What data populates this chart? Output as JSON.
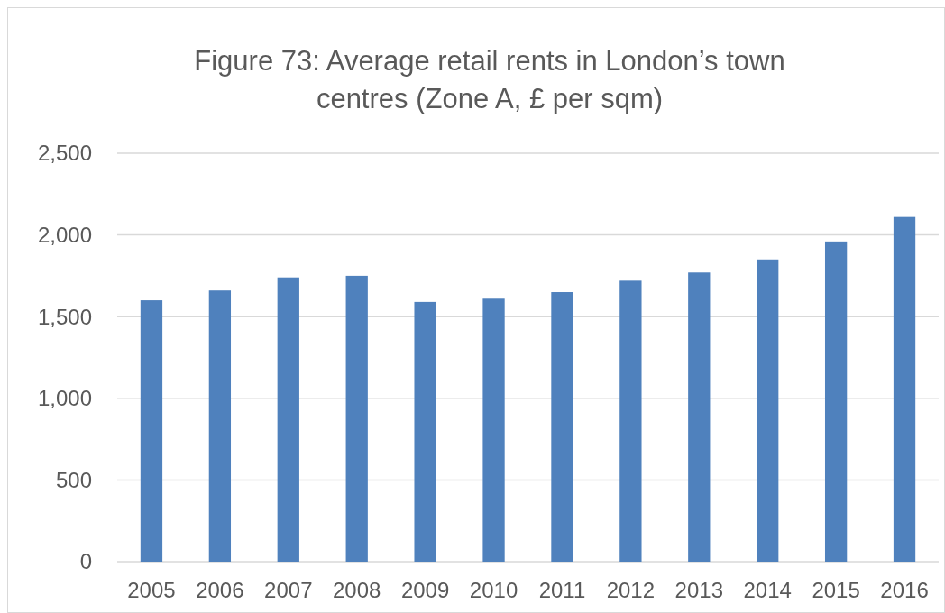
{
  "chart_data": {
    "type": "bar",
    "title": "Figure 73: Average retail rents in London’s town centres (Zone A, £ per sqm)",
    "categories": [
      "2005",
      "2006",
      "2007",
      "2008",
      "2009",
      "2010",
      "2011",
      "2012",
      "2013",
      "2014",
      "2015",
      "2016"
    ],
    "values": [
      1600,
      1660,
      1740,
      1750,
      1590,
      1610,
      1650,
      1720,
      1770,
      1850,
      1960,
      2110
    ],
    "color": "#4f81bd",
    "ylim": [
      0,
      2500
    ],
    "yticks": [
      {
        "value": 0,
        "label": "0"
      },
      {
        "value": 500,
        "label": "500"
      },
      {
        "value": 1000,
        "label": "1,000"
      },
      {
        "value": 1500,
        "label": "1,500"
      },
      {
        "value": 2000,
        "label": "2,000"
      },
      {
        "value": 2500,
        "label": "2,500"
      }
    ],
    "grid": "y"
  }
}
